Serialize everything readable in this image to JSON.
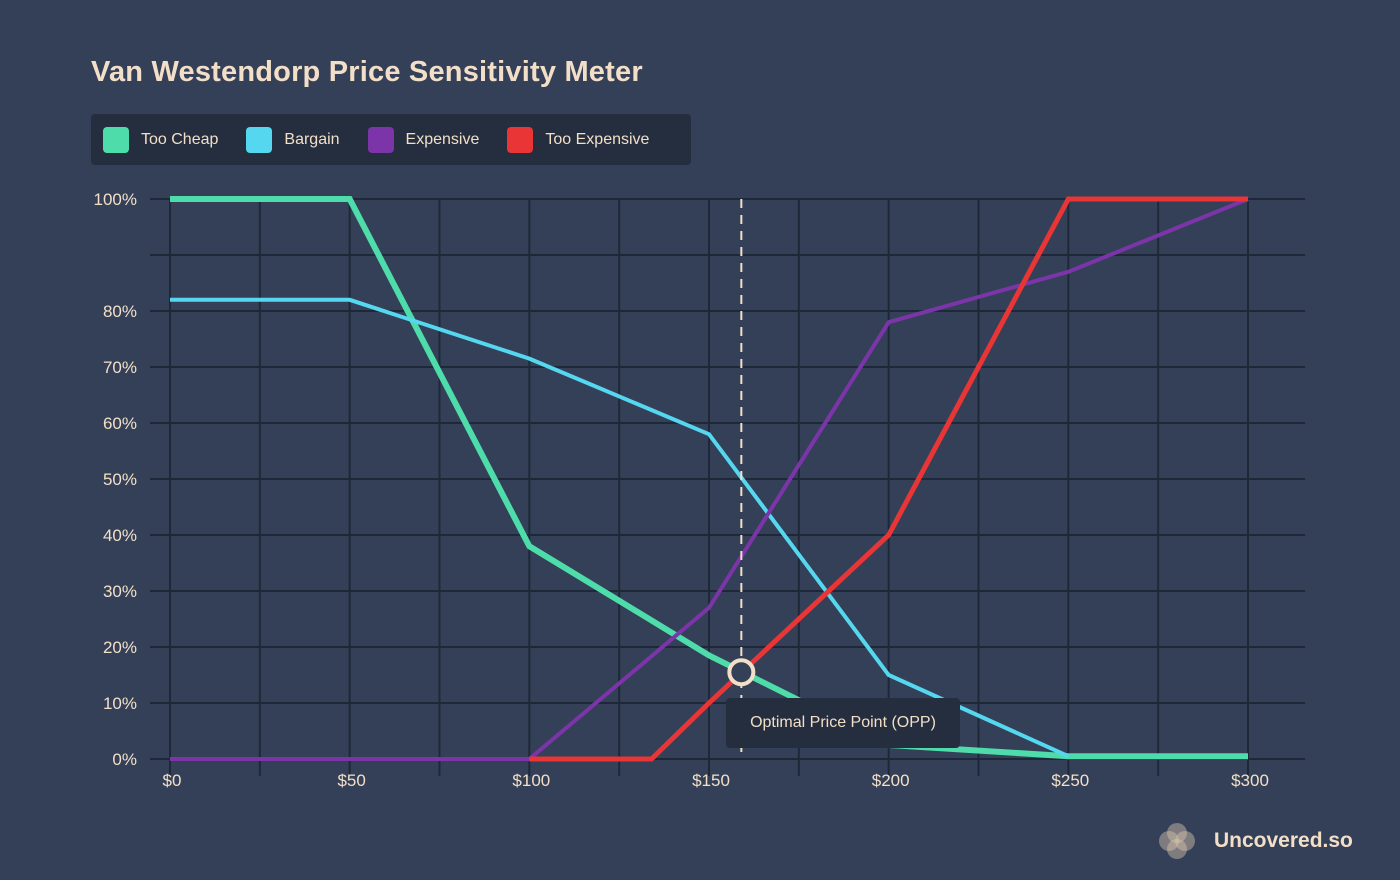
{
  "chart_data": {
    "type": "line",
    "title": "Van Westendorp Price Sensitivity Meter",
    "xlabel": "",
    "ylabel": "",
    "xlim": [
      0,
      300
    ],
    "ylim": [
      0,
      100
    ],
    "x_ticks": [
      "$0",
      "$50",
      "$100",
      "$150",
      "$200",
      "$250",
      "$300"
    ],
    "y_ticks": [
      "0%",
      "10%",
      "20%",
      "30%",
      "40%",
      "50%",
      "60%",
      "70%",
      "80%",
      "100%"
    ],
    "series": [
      {
        "name": "Too Cheap",
        "color": "#4ddcaa",
        "points": [
          [
            0,
            100
          ],
          [
            50,
            100
          ],
          [
            100,
            38
          ],
          [
            150,
            18.5
          ],
          [
            200,
            2.5
          ],
          [
            250,
            0.5
          ],
          [
            300,
            0.5
          ]
        ]
      },
      {
        "name": "Bargain",
        "color": "#55d8ef",
        "points": [
          [
            0,
            82
          ],
          [
            50,
            82
          ],
          [
            100,
            71.5
          ],
          [
            150,
            58
          ],
          [
            200,
            15
          ],
          [
            250,
            0.5
          ]
        ]
      },
      {
        "name": "Expensive",
        "color": "#7b35a8",
        "points": [
          [
            0,
            0
          ],
          [
            100,
            0
          ],
          [
            150,
            27
          ],
          [
            200,
            78
          ],
          [
            250,
            87
          ],
          [
            300,
            100
          ]
        ]
      },
      {
        "name": "Too Expensive",
        "color": "#e93535",
        "points": [
          [
            100,
            0
          ],
          [
            134,
            0
          ],
          [
            150,
            10
          ],
          [
            200,
            40
          ],
          [
            250,
            100
          ],
          [
            300,
            100
          ]
        ]
      }
    ],
    "annotations": [
      {
        "label": "Optimal Price Point (OPP)",
        "x": 159,
        "y": 15.5
      }
    ]
  },
  "legend": [
    {
      "label": "Too Cheap",
      "color": "#4ddcaa"
    },
    {
      "label": "Bargain",
      "color": "#55d8ef"
    },
    {
      "label": "Expensive",
      "color": "#7b35a8"
    },
    {
      "label": "Too Expensive",
      "color": "#e93535"
    }
  ],
  "brand": {
    "name": "Uncovered.so"
  }
}
